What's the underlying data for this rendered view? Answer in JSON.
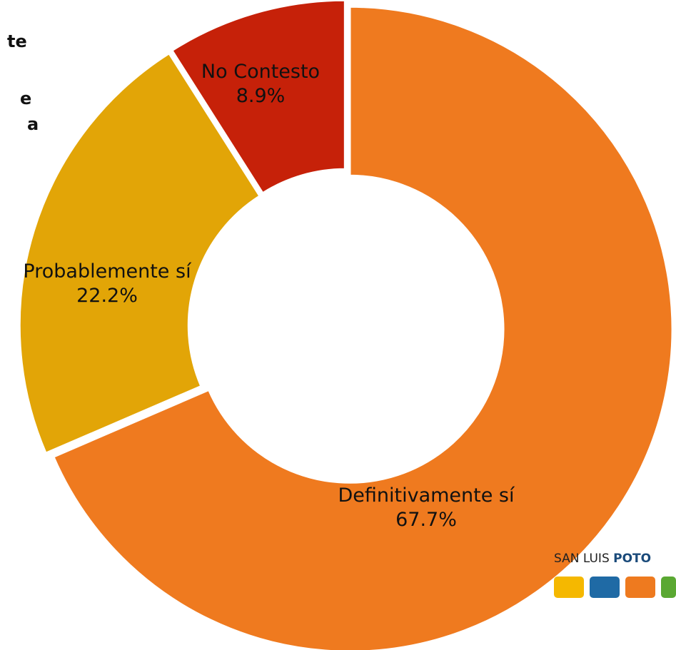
{
  "chart_data": {
    "type": "pie",
    "categories": [
      "Definitivamente sí",
      "Probablemente sí",
      "No Contesto"
    ],
    "values": [
      67.7,
      22.2,
      8.9
    ],
    "value_labels": [
      "67.7%",
      "22.2%",
      "8.9%"
    ],
    "colors": [
      "#ef7a1f",
      "#e2a507",
      "#c62109"
    ],
    "hole": true
  },
  "side_text": [
    "te",
    "e",
    "a"
  ],
  "logo": {
    "regular": "SAN LUIS",
    "bold": "POTO"
  }
}
